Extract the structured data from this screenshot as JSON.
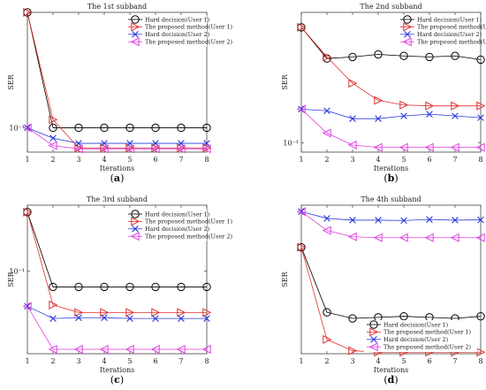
{
  "chart_data": [
    {
      "type": "line",
      "panel": "a",
      "title": "The 1st subband",
      "xlabel": "Iterations",
      "ylabel": "SER",
      "caption_letter": "a",
      "x": [
        1,
        2,
        3,
        4,
        5,
        6,
        7,
        8
      ],
      "xlim": [
        1,
        8
      ],
      "ylim": [
        0.0712,
        0.5
      ],
      "yscale": "log",
      "ytick_labels": [
        "10⁻¹"
      ],
      "ytick_values": [
        0.1
      ],
      "legend_loc": "top-right",
      "series": [
        {
          "name": "Hard decision(User 1)",
          "marker": "circle",
          "color": "#000000",
          "values": [
            0.5,
            0.1,
            0.1,
            0.1,
            0.1,
            0.1,
            0.1,
            0.1
          ]
        },
        {
          "name": "The proposed method(User 1)",
          "marker": "triangle-right",
          "color": "#e03030",
          "values": [
            0.5,
            0.112,
            0.0755,
            0.0755,
            0.0755,
            0.0755,
            0.0755,
            0.0755
          ]
        },
        {
          "name": "Hard decision(User 2)",
          "marker": "x",
          "color": "#2a3bdc",
          "values": [
            0.1,
            0.0865,
            0.0805,
            0.0805,
            0.0805,
            0.0805,
            0.0805,
            0.0805
          ]
        },
        {
          "name": "The proposed method(User 2)",
          "marker": "triangle-left",
          "color": "#e040e0",
          "values": [
            0.1,
            0.078,
            0.0745,
            0.0745,
            0.0745,
            0.0745,
            0.0745,
            0.0745
          ]
        }
      ]
    },
    {
      "type": "line",
      "panel": "b",
      "title": "The 2nd subband",
      "xlabel": "Iterations",
      "ylabel": "SER",
      "caption_letter": "b",
      "x": [
        1,
        2,
        3,
        4,
        5,
        6,
        7,
        8
      ],
      "xlim": [
        1,
        8
      ],
      "ylim": [
        0.092,
        0.32
      ],
      "yscale": "log",
      "ytick_labels": [
        "10⁻¹"
      ],
      "ytick_values": [
        0.1
      ],
      "legend_loc": "top-right",
      "series": [
        {
          "name": "Hard decision(User 1)",
          "marker": "circle",
          "color": "#000000",
          "values": [
            0.28,
            0.212,
            0.215,
            0.22,
            0.217,
            0.215,
            0.217,
            0.21
          ]
        },
        {
          "name": "The proposed method(User 1)",
          "marker": "triangle-right",
          "color": "#e03030",
          "values": [
            0.28,
            0.215,
            0.17,
            0.146,
            0.14,
            0.139,
            0.139,
            0.139
          ]
        },
        {
          "name": "Hard decision(User 2)",
          "marker": "x",
          "color": "#2a3bdc",
          "values": [
            0.135,
            0.133,
            0.124,
            0.124,
            0.127,
            0.129,
            0.127,
            0.125
          ]
        },
        {
          "name": "The proposed method(User 2)",
          "marker": "triangle-left",
          "color": "#e040e0",
          "values": [
            0.135,
            0.109,
            0.098,
            0.096,
            0.096,
            0.096,
            0.096,
            0.096
          ]
        }
      ]
    },
    {
      "type": "line",
      "panel": "c",
      "title": "The 3rd subband",
      "xlabel": "Iterations",
      "ylabel": "SER",
      "caption_letter": "c",
      "x": [
        1,
        2,
        3,
        4,
        5,
        6,
        7,
        8
      ],
      "xlim": [
        1,
        8
      ],
      "ylim": [
        0.0405,
        0.205
      ],
      "yscale": "log",
      "ytick_labels": [
        "10⁻¹"
      ],
      "ytick_values": [
        0.1
      ],
      "legend_loc": "top-right",
      "series": [
        {
          "name": "Hard decision(User 1)",
          "marker": "circle",
          "color": "#000000",
          "values": [
            0.19,
            0.084,
            0.084,
            0.084,
            0.084,
            0.084,
            0.084,
            0.084
          ]
        },
        {
          "name": "The proposed method(User 1)",
          "marker": "triangle-right",
          "color": "#e03030",
          "values": [
            0.19,
            0.069,
            0.0635,
            0.0635,
            0.0635,
            0.0635,
            0.0635,
            0.0635
          ]
        },
        {
          "name": "Hard decision(User 2)",
          "marker": "x",
          "color": "#2a3bdc",
          "values": [
            0.068,
            0.0595,
            0.06,
            0.06,
            0.0595,
            0.0595,
            0.0595,
            0.0595
          ]
        },
        {
          "name": "The proposed method(User 2)",
          "marker": "triangle-left",
          "color": "#e040e0",
          "values": [
            0.068,
            0.0425,
            0.0425,
            0.0425,
            0.0425,
            0.0425,
            0.0425,
            0.0425
          ]
        }
      ]
    },
    {
      "type": "line",
      "panel": "d",
      "title": "The 4th subband",
      "xlabel": "Iterations",
      "ylabel": "SER",
      "caption_letter": "d",
      "x": [
        1,
        2,
        3,
        4,
        5,
        6,
        7,
        8
      ],
      "xlim": [
        1,
        8
      ],
      "ylim": [
        0.06,
        0.3
      ],
      "yscale": "log",
      "ytick_labels": [],
      "ytick_values": [],
      "legend_loc": "bottom-right",
      "series": [
        {
          "name": "Hard decision(User 1)",
          "marker": "circle",
          "color": "#000000",
          "values": [
            0.19,
            0.094,
            0.088,
            0.089,
            0.09,
            0.089,
            0.088,
            0.09
          ]
        },
        {
          "name": "The proposed method(User 1)",
          "marker": "triangle-right",
          "color": "#e03030",
          "values": [
            0.19,
            0.07,
            0.062,
            0.061,
            0.061,
            0.061,
            0.061,
            0.061
          ]
        },
        {
          "name": "Hard decision(User 2)",
          "marker": "x",
          "color": "#2a3bdc",
          "values": [
            0.28,
            0.26,
            0.255,
            0.255,
            0.254,
            0.257,
            0.255,
            0.256
          ]
        },
        {
          "name": "The proposed method(User 2)",
          "marker": "triangle-left",
          "color": "#e040e0",
          "values": [
            0.28,
            0.228,
            0.213,
            0.211,
            0.211,
            0.211,
            0.211,
            0.211
          ]
        }
      ]
    }
  ]
}
